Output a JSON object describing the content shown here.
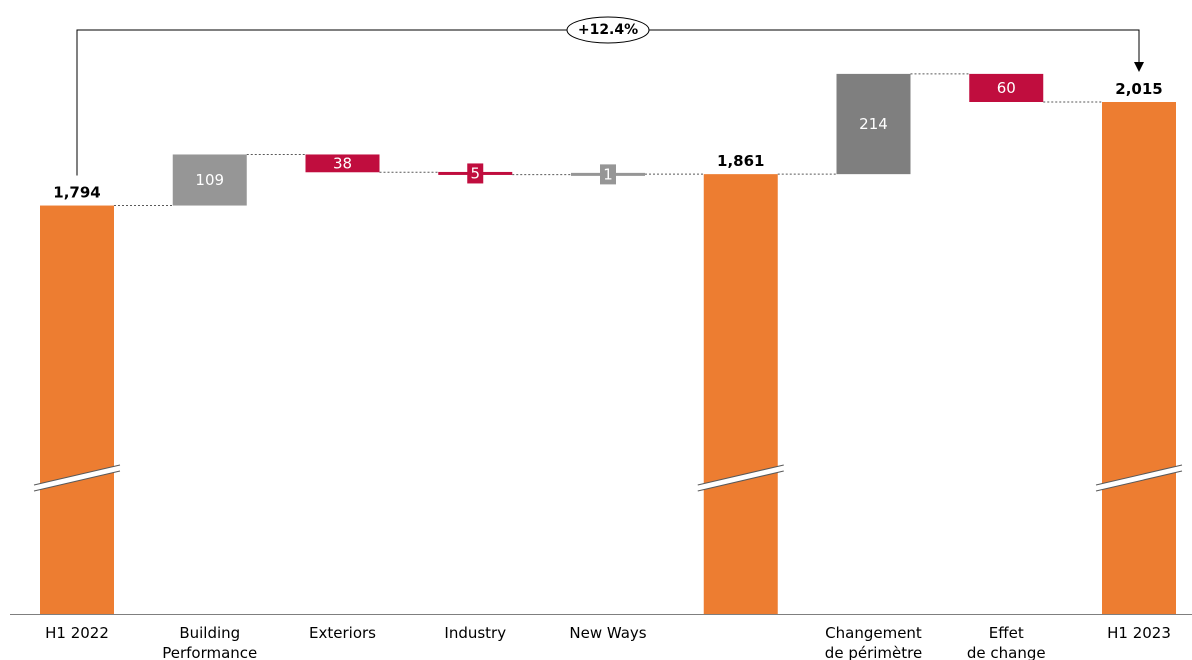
{
  "chart_data": {
    "type": "bar",
    "variant": "waterfall",
    "title": "",
    "xlabel": "",
    "ylabel": "",
    "categories": [
      "H1 2022",
      "Building Performance",
      "Exteriors",
      "Industry",
      "New Ways",
      "",
      "Changement de périmètre",
      "Effet de change",
      "H1 2023"
    ],
    "steps": [
      {
        "category": "H1 2022",
        "kind": "total",
        "value": 1794,
        "label": "1,794"
      },
      {
        "category": "Building Performance",
        "kind": "increase",
        "value": 109,
        "label": "109"
      },
      {
        "category": "Exteriors",
        "kind": "decrease",
        "value": -38,
        "label": "38"
      },
      {
        "category": "Industry",
        "kind": "decrease",
        "value": -5,
        "label": "5"
      },
      {
        "category": "New Ways",
        "kind": "increase",
        "value": 1,
        "label": "1"
      },
      {
        "category": "",
        "kind": "total",
        "value": 1861,
        "label": "1,861"
      },
      {
        "category": "Changement de périmètre",
        "kind": "increase",
        "value": 214,
        "label": "214"
      },
      {
        "category": "Effet de change",
        "kind": "decrease",
        "value": -60,
        "label": "60"
      },
      {
        "category": "H1 2023",
        "kind": "total",
        "value": 2015,
        "label": "2,015"
      }
    ],
    "growth_annotation": "+12.4%",
    "axis_break": true,
    "grid": false,
    "legend": "none",
    "colors": {
      "total": "#ED7D31",
      "increase_organic": "#969696",
      "increase_scope": "#7F7F7F",
      "decrease": "#C00D3E",
      "connector": "#595959",
      "axis": "#7F7F7F"
    }
  }
}
